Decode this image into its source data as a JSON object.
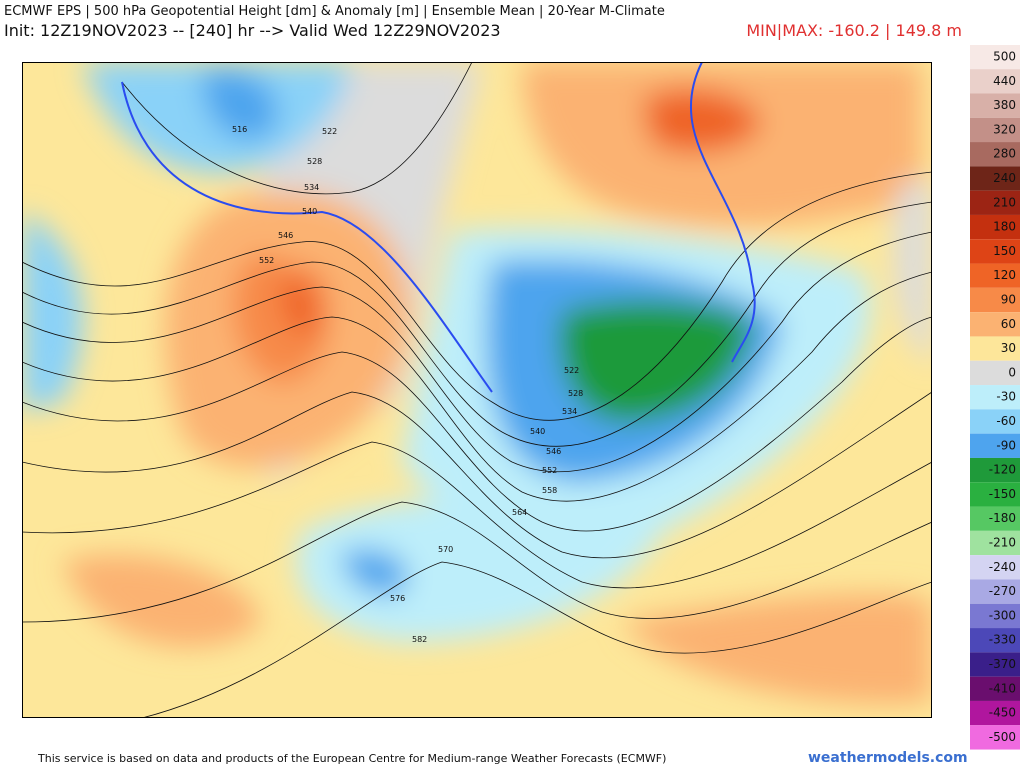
{
  "header": {
    "title": "ECMWF EPS | 500 hPa Geopotential Height [dm] & Anomaly [m] | Ensemble Mean | 20-Year M-Climate",
    "subtitle": "Init: 12Z19NOV2023 -- [240] hr --> Valid Wed 12Z29NOV2023",
    "minmax": "MIN|MAX: -160.2 | 149.8 m"
  },
  "colorbar": {
    "levels": [
      500,
      440,
      380,
      320,
      280,
      240,
      210,
      180,
      150,
      120,
      90,
      60,
      30,
      0,
      -30,
      -60,
      -90,
      -120,
      -150,
      -180,
      -210,
      -240,
      -270,
      -300,
      -330,
      -370,
      -410,
      -450,
      -500
    ],
    "colors": [
      "#f7e9e6",
      "#ead0ca",
      "#d8b0a8",
      "#c39088",
      "#a86a60",
      "#6e2518",
      "#9c2414",
      "#c4300f",
      "#de4416",
      "#ef6426",
      "#f78a48",
      "#fbb272",
      "#fde69a",
      "#dcdcdc",
      "#bdeefa",
      "#8ad2f8",
      "#4ea4ee",
      "#1f9a3a",
      "#2ab040",
      "#56c863",
      "#9fe29f",
      "#d4d4f2",
      "#a9a9e4",
      "#7a78d2",
      "#4c48b8",
      "#3a1f8a",
      "#6a0e6e",
      "#b0169e",
      "#f06ae0"
    ]
  },
  "contours": [
    "516",
    "522",
    "528",
    "534",
    "540",
    "546",
    "552",
    "522",
    "528",
    "534",
    "540",
    "546",
    "552",
    "558",
    "564",
    "570",
    "576",
    "582"
  ],
  "footer": {
    "credit": "This service is based on data and products of the European Centre for Medium-range Weather Forecasts (ECMWF)",
    "site": "weathermodels.com"
  }
}
